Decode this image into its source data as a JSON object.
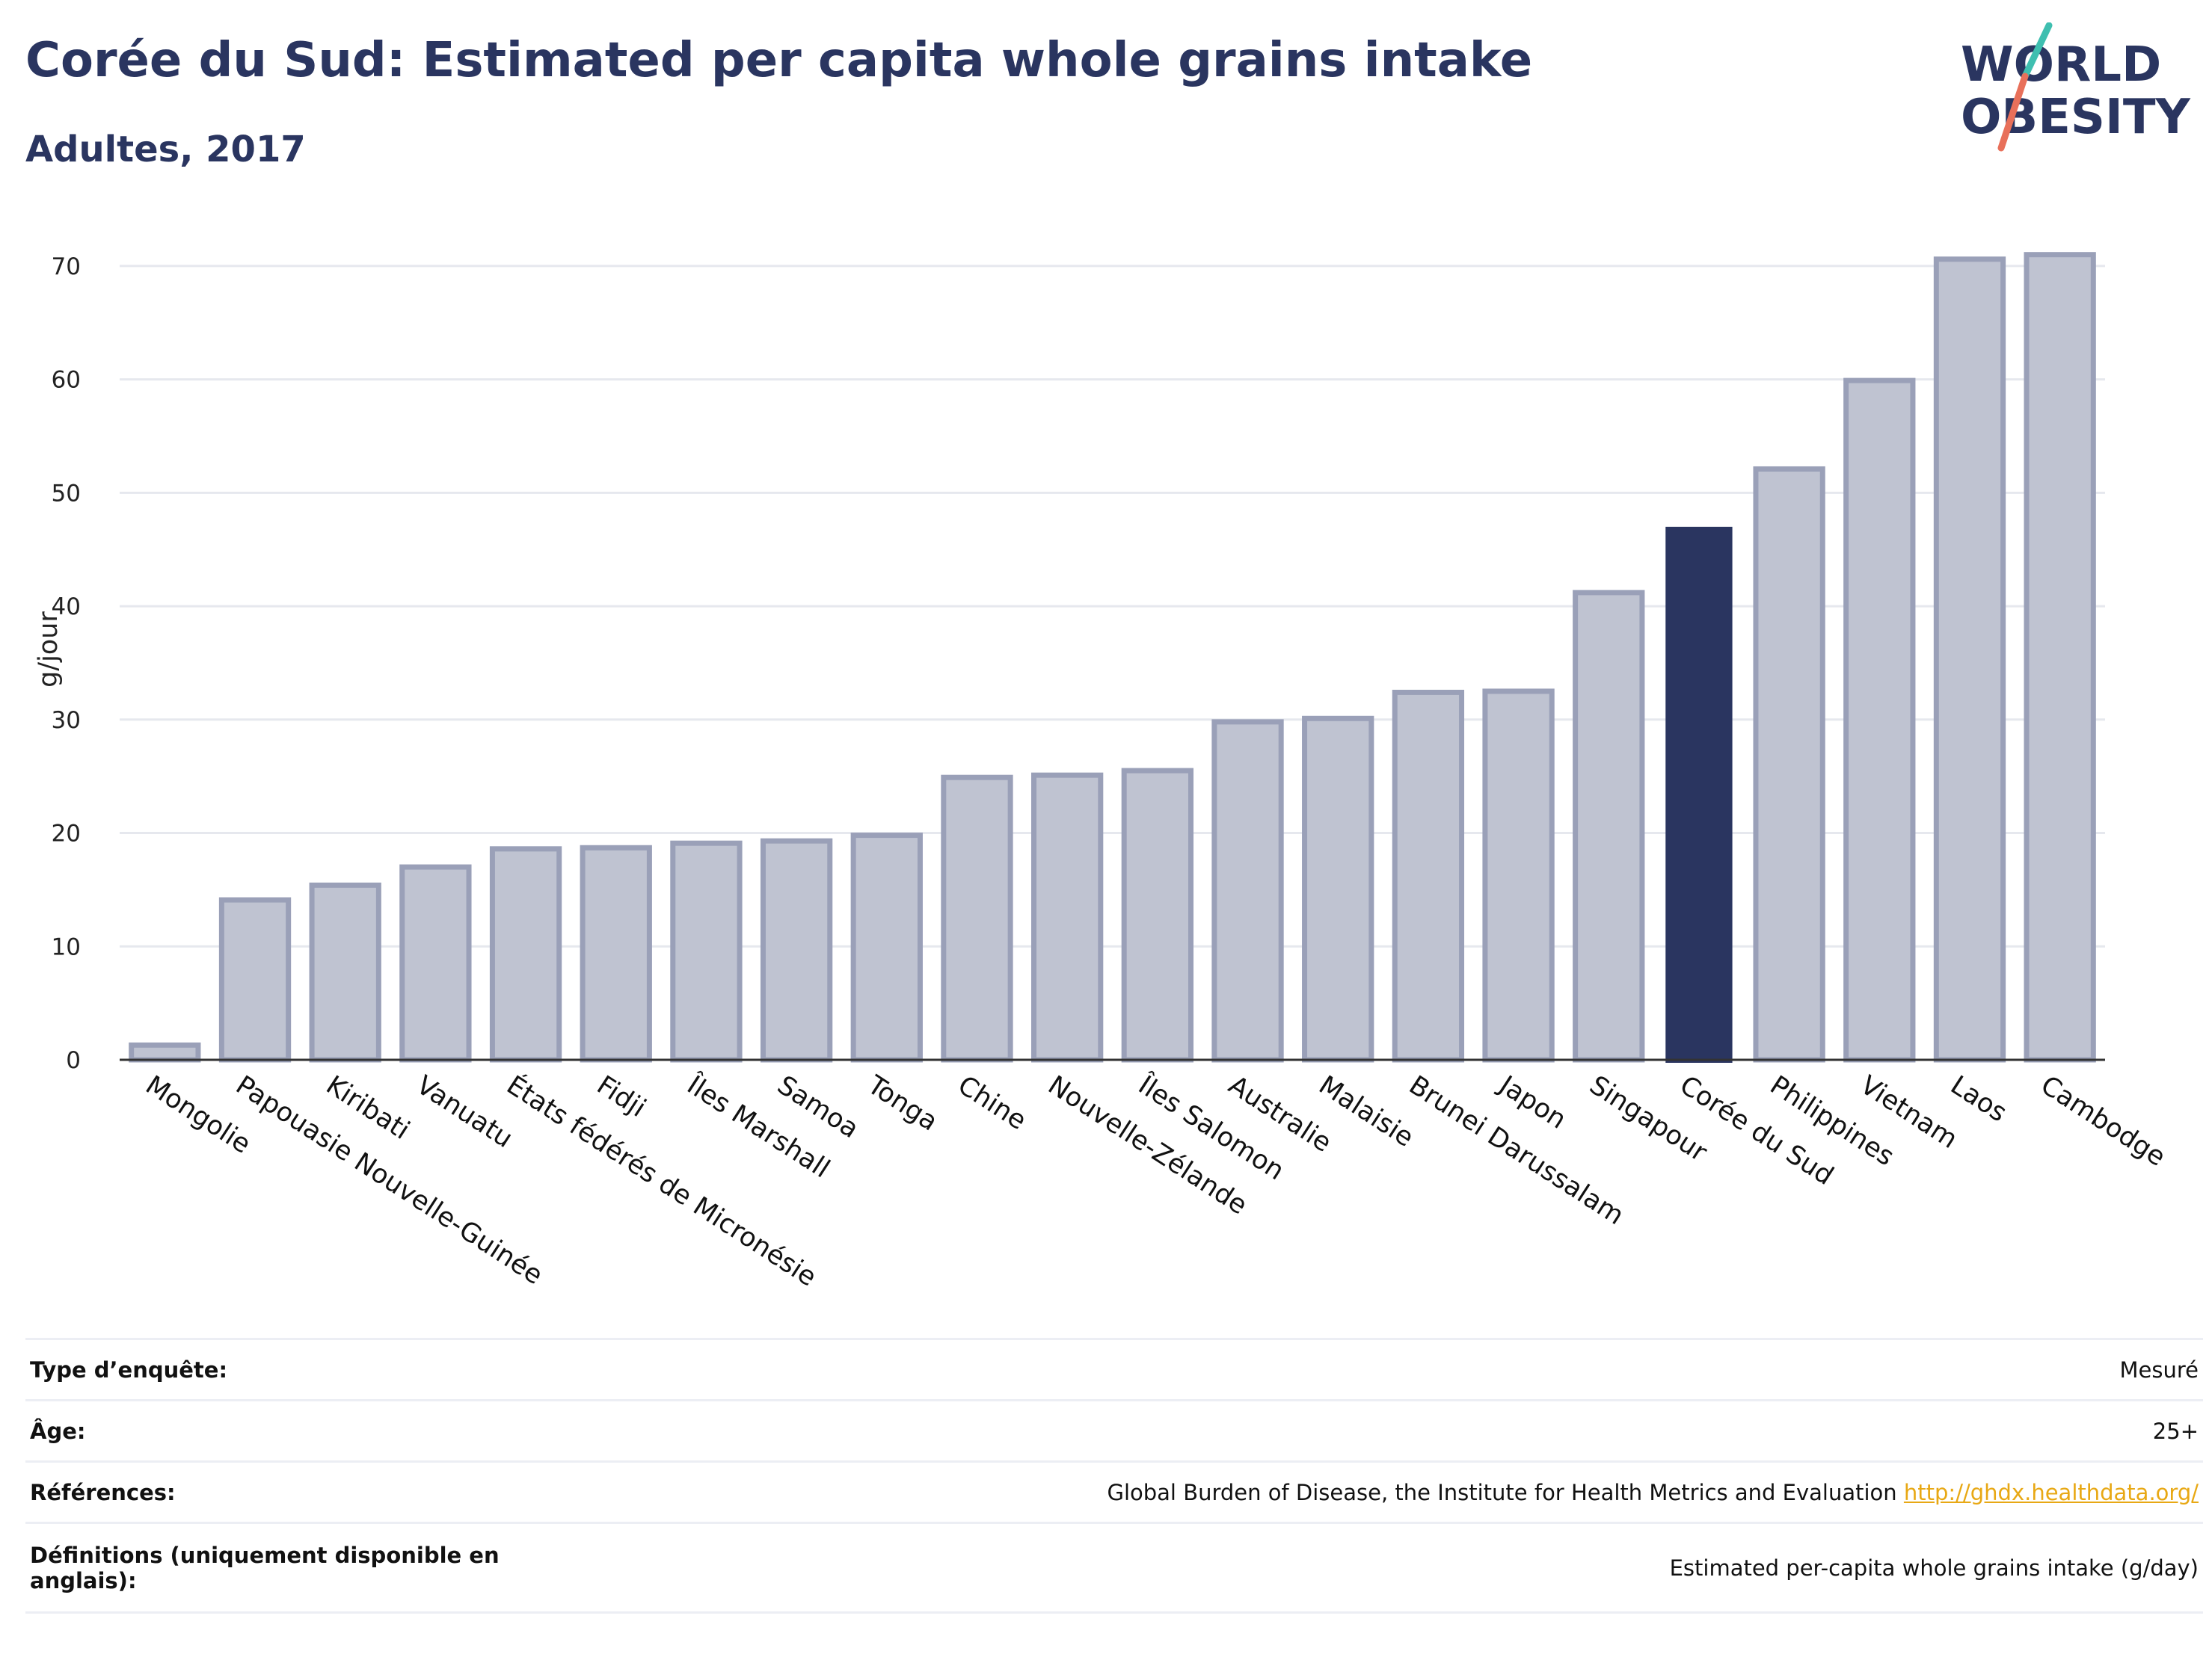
{
  "header": {
    "title": "Corée du Sud: Estimated per capita whole grains intake",
    "subtitle": "Adultes, 2017"
  },
  "logo": {
    "line1": "WORLD",
    "line2": "OBESITY"
  },
  "colors": {
    "highlight": "#2a3560",
    "bar_fill": "#bfc3d1",
    "bar_stroke": "#9aa0b8",
    "title": "#2a3560",
    "logo_teal": "#3fbfb0",
    "logo_red": "#e8705a",
    "link": "#e8a814"
  },
  "chart_data": {
    "type": "bar",
    "ylabel": "g/jour",
    "xlabel": "",
    "ylim": [
      0,
      75
    ],
    "yticks": [
      0,
      10,
      20,
      30,
      40,
      50,
      60,
      70
    ],
    "grid": true,
    "highlight": "Corée du Sud",
    "categories": [
      "Mongolie",
      "Papouasie Nouvelle-Guinée",
      "Kiribati",
      "Vanuatu",
      "États fédérés de Micronésie",
      "Fidji",
      "Îles Marshall",
      "Samoa",
      "Tonga",
      "Chine",
      "Nouvelle-Zélande",
      "Îles Salomon",
      "Australie",
      "Malaisie",
      "Brunei Darussalam",
      "Japon",
      "Singapour",
      "Corée du Sud",
      "Philippines",
      "Vietnam",
      "Laos",
      "Cambodge"
    ],
    "values": [
      1.3,
      14.1,
      15.4,
      17.0,
      18.6,
      18.7,
      19.1,
      19.3,
      19.8,
      24.9,
      25.1,
      25.5,
      29.8,
      30.1,
      32.4,
      32.5,
      41.2,
      47.0,
      52.1,
      59.9,
      70.6,
      71.0
    ]
  },
  "info": [
    {
      "label": "Type d’enquête:",
      "value": "Mesuré"
    },
    {
      "label": "Âge:",
      "value": "25+"
    },
    {
      "label": "Références:",
      "value": "Global Burden of Disease, the Institute for Health Metrics and Evaluation",
      "link": "http://ghdx.healthdata.org/"
    },
    {
      "label": "Définitions (uniquement disponible en anglais):",
      "value": "Estimated per-capita whole grains intake (g/day)"
    }
  ]
}
